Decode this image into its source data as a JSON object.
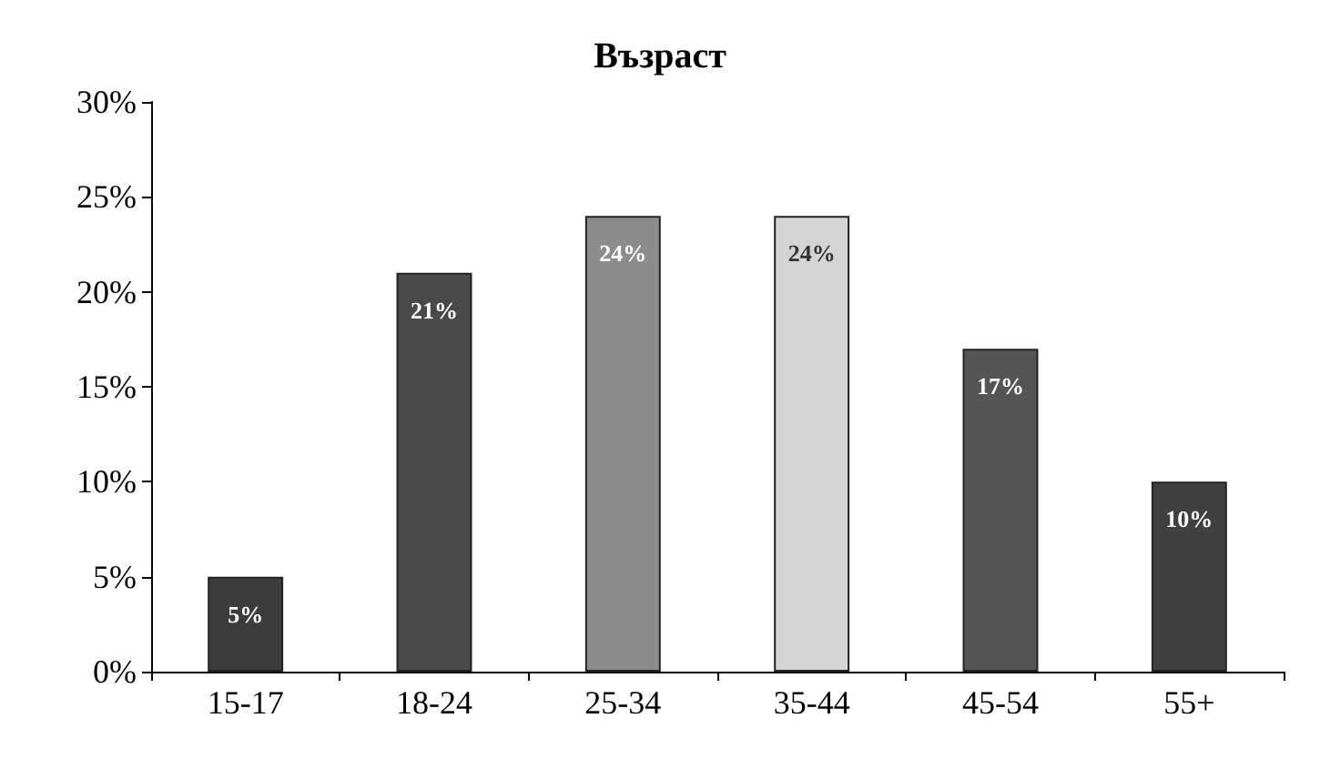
{
  "chart_data": {
    "type": "bar",
    "title": "Възраст",
    "categories": [
      "15-17",
      "18-24",
      "25-34",
      "35-44",
      "45-54",
      "55+"
    ],
    "values": [
      5,
      21,
      24,
      24,
      17,
      10
    ],
    "value_labels": [
      "5%",
      "21%",
      "24%",
      "24%",
      "17%",
      "10%"
    ],
    "colors": [
      "#3c3c3c",
      "#4a4a4a",
      "#8c8c8c",
      "#d4d4d4",
      "#555555",
      "#404040"
    ],
    "ylim": [
      0,
      30
    ],
    "yticks": [
      {
        "value": 0,
        "label": "0%"
      },
      {
        "value": 5,
        "label": "5%"
      },
      {
        "value": 10,
        "label": "10%"
      },
      {
        "value": 15,
        "label": "15%"
      },
      {
        "value": 20,
        "label": "20%"
      },
      {
        "value": 25,
        "label": "25%"
      },
      {
        "value": 30,
        "label": "30%"
      }
    ],
    "grid": false
  }
}
